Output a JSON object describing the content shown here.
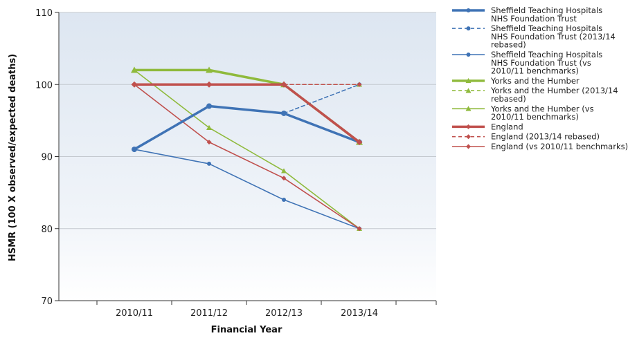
{
  "chart_data": {
    "type": "line",
    "title": "",
    "xlabel": "Financial Year",
    "ylabel": "HSMR (100 X observed/expected deaths)",
    "categories": [
      "2010/11",
      "2011/12",
      "2012/13",
      "2013/14"
    ],
    "ylim": [
      70,
      110
    ],
    "yticks": [
      70,
      80,
      90,
      100,
      110
    ],
    "grid": true,
    "legend_position": "right",
    "series": [
      {
        "name": [
          "Sheffield Teaching Hospitals",
          "NHS Foundation Trust"
        ],
        "values": [
          91,
          97,
          96,
          92
        ],
        "color": "#3f73b5",
        "style": "solid",
        "width": "thick",
        "marker": "circle"
      },
      {
        "name": [
          "Sheffield Teaching Hospitals",
          "NHS Foundation Trust (2013/14",
          "rebased)"
        ],
        "values": [
          null,
          null,
          96,
          100
        ],
        "color": "#3f73b5",
        "style": "dashed",
        "width": "thin",
        "marker": "circle"
      },
      {
        "name": [
          "Sheffield Teaching Hospitals",
          "NHS Foundation Trust (vs",
          "2010/11 benchmarks)"
        ],
        "values": [
          91,
          89,
          84,
          80
        ],
        "color": "#3f73b5",
        "style": "solid",
        "width": "thin",
        "marker": "circle"
      },
      {
        "name": [
          "Yorks and the Humber"
        ],
        "values": [
          102,
          102,
          100,
          92
        ],
        "color": "#8fba3c",
        "style": "solid",
        "width": "thick",
        "marker": "triangle"
      },
      {
        "name": [
          "Yorks and the Humber (2013/14",
          "rebased)"
        ],
        "values": [
          null,
          null,
          100,
          100
        ],
        "color": "#8fba3c",
        "style": "dashed",
        "width": "thin",
        "marker": "triangle"
      },
      {
        "name": [
          "Yorks and the Humber (vs",
          "2010/11 benchmarks)"
        ],
        "values": [
          102,
          94,
          88,
          80
        ],
        "color": "#8fba3c",
        "style": "solid",
        "width": "thin",
        "marker": "triangle"
      },
      {
        "name": [
          "England"
        ],
        "values": [
          100,
          100,
          100,
          92
        ],
        "color": "#c0504d",
        "style": "solid",
        "width": "thick",
        "marker": "diamond"
      },
      {
        "name": [
          "England (2013/14 rebased)"
        ],
        "values": [
          null,
          null,
          100,
          100
        ],
        "color": "#c0504d",
        "style": "dashed",
        "width": "thin",
        "marker": "diamond"
      },
      {
        "name": [
          "England (vs 2010/11 benchmarks)"
        ],
        "values": [
          100,
          92,
          87,
          80
        ],
        "color": "#c0504d",
        "style": "solid",
        "width": "thin",
        "marker": "diamond"
      }
    ]
  }
}
